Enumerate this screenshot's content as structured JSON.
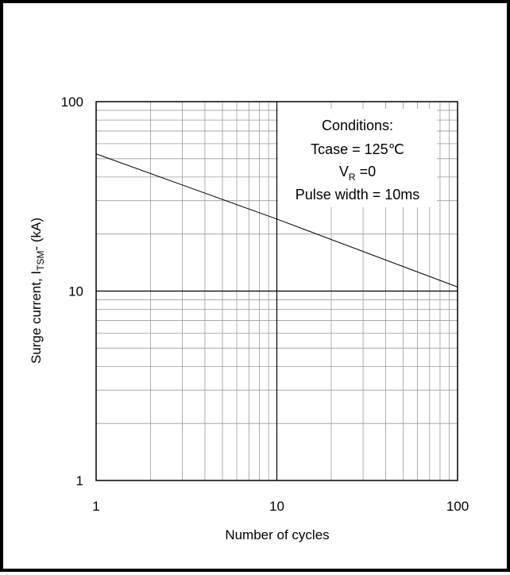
{
  "chart_data": {
    "type": "line",
    "x_scale": "log",
    "y_scale": "log",
    "xlim": [
      1,
      100
    ],
    "ylim": [
      1,
      100
    ],
    "xlabel": "Number of cycles",
    "ylabel": {
      "main": "Surge current, I",
      "sub": "TSM",
      "suffix": "- (kA)"
    },
    "x_ticks": [
      "1",
      "10",
      "100"
    ],
    "y_ticks": [
      "1",
      "10",
      "100"
    ],
    "grid": true,
    "series": [
      {
        "x": [
          1,
          10,
          100
        ],
        "y": [
          53,
          24,
          10.5
        ]
      }
    ],
    "annotation": {
      "lines": [
        "Conditions:",
        "Tcase = 125℃",
        "Pulse width = 10ms"
      ],
      "vr_main": "V",
      "vr_sub": "R",
      "vr_value": " =0"
    },
    "colors": {
      "grid": "#9a9a9a",
      "major_grid": "#000000",
      "line": "#000000"
    }
  }
}
